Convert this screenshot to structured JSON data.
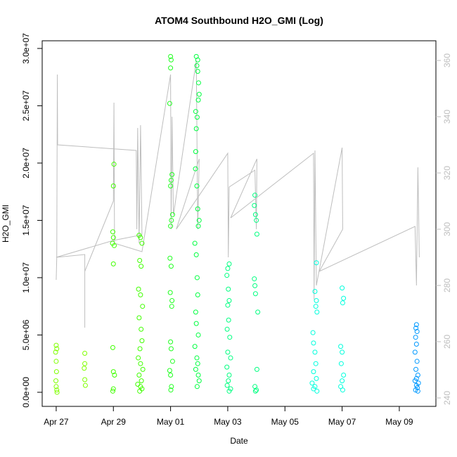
{
  "chart_data": {
    "type": "scatter",
    "title": "ATOM4 Southbound H2O_GMI (Log)",
    "xlabel": "Date",
    "ylabel": "H2O_GMI",
    "xlim": [
      -0.49,
      13.28
    ],
    "xticks": [
      {
        "value": 0,
        "label": "Apr 27"
      },
      {
        "value": 2,
        "label": "Apr 29"
      },
      {
        "value": 4,
        "label": "May 01"
      },
      {
        "value": 6,
        "label": "May 03"
      },
      {
        "value": 8,
        "label": "May 05"
      },
      {
        "value": 10,
        "label": "May 07"
      },
      {
        "value": 12,
        "label": "May 09"
      }
    ],
    "ylim": [
      -1230000,
      30670000
    ],
    "yticks": [
      {
        "value": 0,
        "label": "0.0e+00"
      },
      {
        "value": 5000000,
        "label": "5.0e+06"
      },
      {
        "value": 10000000,
        "label": "1.0e+07"
      },
      {
        "value": 15000000,
        "label": "1.5e+07"
      },
      {
        "value": 20000000,
        "label": "2.0e+07"
      },
      {
        "value": 25000000,
        "label": "2.5e+07"
      },
      {
        "value": 30000000,
        "label": "3.0e+07"
      }
    ],
    "y2lim": [
      237,
      367
    ],
    "y2ticks": [
      240,
      260,
      280,
      300,
      320,
      340,
      360
    ],
    "series": [
      {
        "type": "line",
        "axis": "y2",
        "color": "#bebebe",
        "x": [
          0.0,
          0.02,
          0.04,
          0.05,
          2.8,
          2.82,
          2.85,
          2.9,
          2.95,
          3.0,
          2.0,
          0.0,
          0.0,
          1.0,
          1.0,
          1.0,
          2.0,
          2.02,
          2.04,
          3.0,
          4.0,
          4.02,
          4.05,
          4.1,
          4.9,
          4.95,
          5.0,
          4.2,
          6.0,
          6.02,
          6.05,
          6.95,
          7.0,
          7.02,
          6.1,
          9.0,
          9.02,
          9.05,
          9.1,
          10.0,
          10.02,
          9.2,
          12.55,
          12.6,
          12.65,
          12.7
        ],
        "values": [
          282,
          290,
          355,
          330,
          328,
          300,
          336,
          295,
          337,
          298,
          296,
          290,
          290,
          291,
          265,
          285,
          310,
          345,
          295,
          292,
          355,
          300,
          340,
          305,
          360,
          300,
          325,
          300,
          327,
          290,
          315,
          321,
          300,
          325,
          304,
          327,
          275,
          328,
          280,
          329,
          300,
          285,
          301,
          280,
          322,
          290
        ]
      },
      {
        "type": "scatter",
        "color": "#80ff00",
        "x": [
          0.0,
          0.02,
          -0.02,
          0.0,
          0.01,
          -0.01,
          0.0,
          0.02,
          0.03,
          1.0,
          1.0,
          0.98,
          1.0,
          1.02
        ],
        "values": [
          4100000,
          3800000,
          3500000,
          2700000,
          1800000,
          1000000,
          500000,
          200000,
          0,
          3400000,
          2500000,
          2100000,
          1100000,
          600000
        ]
      },
      {
        "type": "scatter",
        "color": "#40ff00",
        "x": [
          2.02,
          2.0,
          1.98,
          2.0,
          1.97,
          2.03,
          2.0,
          1.98,
          2.0,
          2.04,
          2.0,
          1.98,
          2.9,
          2.95,
          3.0,
          2.92,
          2.97,
          2.88,
          2.95,
          3.02,
          2.9,
          2.97,
          3.0,
          2.93,
          2.87,
          2.95,
          3.03,
          2.9,
          2.98,
          2.85,
          2.95,
          3.0,
          2.92
        ],
        "values": [
          19900000,
          18000000,
          14000000,
          13500000,
          13000000,
          12800000,
          11200000,
          3900000,
          1800000,
          1500000,
          300000,
          100000,
          13700000,
          13500000,
          13000000,
          11500000,
          11000000,
          9000000,
          8500000,
          7500000,
          6500000,
          5500000,
          4500000,
          3800000,
          3000000,
          2500000,
          2000000,
          1500000,
          1000000,
          700000,
          500000,
          300000,
          100000
        ]
      },
      {
        "type": "scatter",
        "color": "#20ff20",
        "x": [
          4.0,
          4.02,
          4.0,
          3.97,
          4.05,
          4.02,
          4.0,
          4.07,
          4.03,
          4.0,
          3.98,
          4.02,
          3.99,
          4.05,
          4.04,
          4.0,
          4.02,
          4.07,
          3.97,
          4.0,
          4.03,
          4.01
        ],
        "values": [
          29300000,
          29000000,
          28300000,
          25200000,
          19000000,
          18500000,
          18000000,
          15500000,
          15000000,
          14500000,
          11700000,
          11000000,
          8700000,
          8000000,
          7500000,
          4400000,
          3800000,
          2700000,
          1900000,
          1500000,
          500000,
          200000
        ]
      },
      {
        "type": "scatter",
        "color": "#00ff40",
        "x": [
          4.9,
          4.95,
          4.92,
          4.95,
          4.98,
          5.0,
          4.97,
          4.88,
          4.93,
          4.9,
          4.88,
          4.87,
          4.92,
          4.95,
          5.0,
          4.97,
          4.85,
          4.9,
          4.93,
          4.95,
          4.88,
          4.9,
          4.97,
          4.85,
          4.92,
          4.95,
          4.88,
          4.97,
          5.0,
          4.93
        ],
        "values": [
          29300000,
          29000000,
          28500000,
          28000000,
          27000000,
          26000000,
          25500000,
          24500000,
          24000000,
          23000000,
          21000000,
          19500000,
          18000000,
          16000000,
          15000000,
          14500000,
          13000000,
          12000000,
          10000000,
          8500000,
          7000000,
          6000000,
          5000000,
          4000000,
          3000000,
          2500000,
          2000000,
          1500000,
          1000000,
          500000
        ]
      },
      {
        "type": "scatter",
        "color": "#00ff80",
        "x": [
          6.05,
          6.0,
          5.97,
          6.02,
          6.05,
          6.0,
          6.03,
          5.98,
          6.07,
          6.0,
          6.1,
          5.97,
          6.05,
          6.02,
          5.98,
          6.1,
          6.05,
          6.95,
          6.93,
          6.97,
          7.0,
          7.02,
          6.93,
          6.95,
          6.97,
          7.05,
          7.02,
          6.95,
          7.0,
          6.97
        ],
        "values": [
          11200000,
          10800000,
          10200000,
          9000000,
          8000000,
          7600000,
          6300000,
          5500000,
          4800000,
          3500000,
          3000000,
          2200000,
          1500000,
          1000000,
          600000,
          300000,
          100000,
          17200000,
          16300000,
          15500000,
          15000000,
          13800000,
          9900000,
          9300000,
          8600000,
          7000000,
          2000000,
          500000,
          200000,
          100000
        ]
      },
      {
        "type": "scatter",
        "color": "#00ffdd",
        "x": [
          9.1,
          9.05,
          9.1,
          9.08,
          9.12,
          8.98,
          9.0,
          9.05,
          9.08,
          9.0,
          9.1,
          8.95,
          9.05,
          9.0,
          9.12,
          10.0,
          10.05,
          10.02,
          9.95,
          10.0,
          9.97,
          10.05,
          10.0,
          9.95,
          10.02
        ],
        "values": [
          11300000,
          8800000,
          8000000,
          7500000,
          7000000,
          5200000,
          4300000,
          3500000,
          2500000,
          1800000,
          1200000,
          800000,
          500000,
          300000,
          100000,
          9100000,
          8200000,
          7800000,
          4000000,
          3500000,
          2500000,
          1500000,
          1000000,
          500000,
          200000
        ]
      },
      {
        "type": "scatter",
        "color": "#0099ff",
        "x": [
          12.6,
          12.58,
          12.62,
          12.57,
          12.6,
          12.55,
          12.62,
          12.58,
          12.65,
          12.6,
          12.55,
          12.67,
          12.6,
          12.63,
          12.57,
          12.65
        ],
        "values": [
          5900000,
          5600000,
          5300000,
          4800000,
          4200000,
          3500000,
          2700000,
          2000000,
          1500000,
          1200000,
          1000000,
          800000,
          600000,
          400000,
          200000,
          100000
        ]
      }
    ]
  }
}
